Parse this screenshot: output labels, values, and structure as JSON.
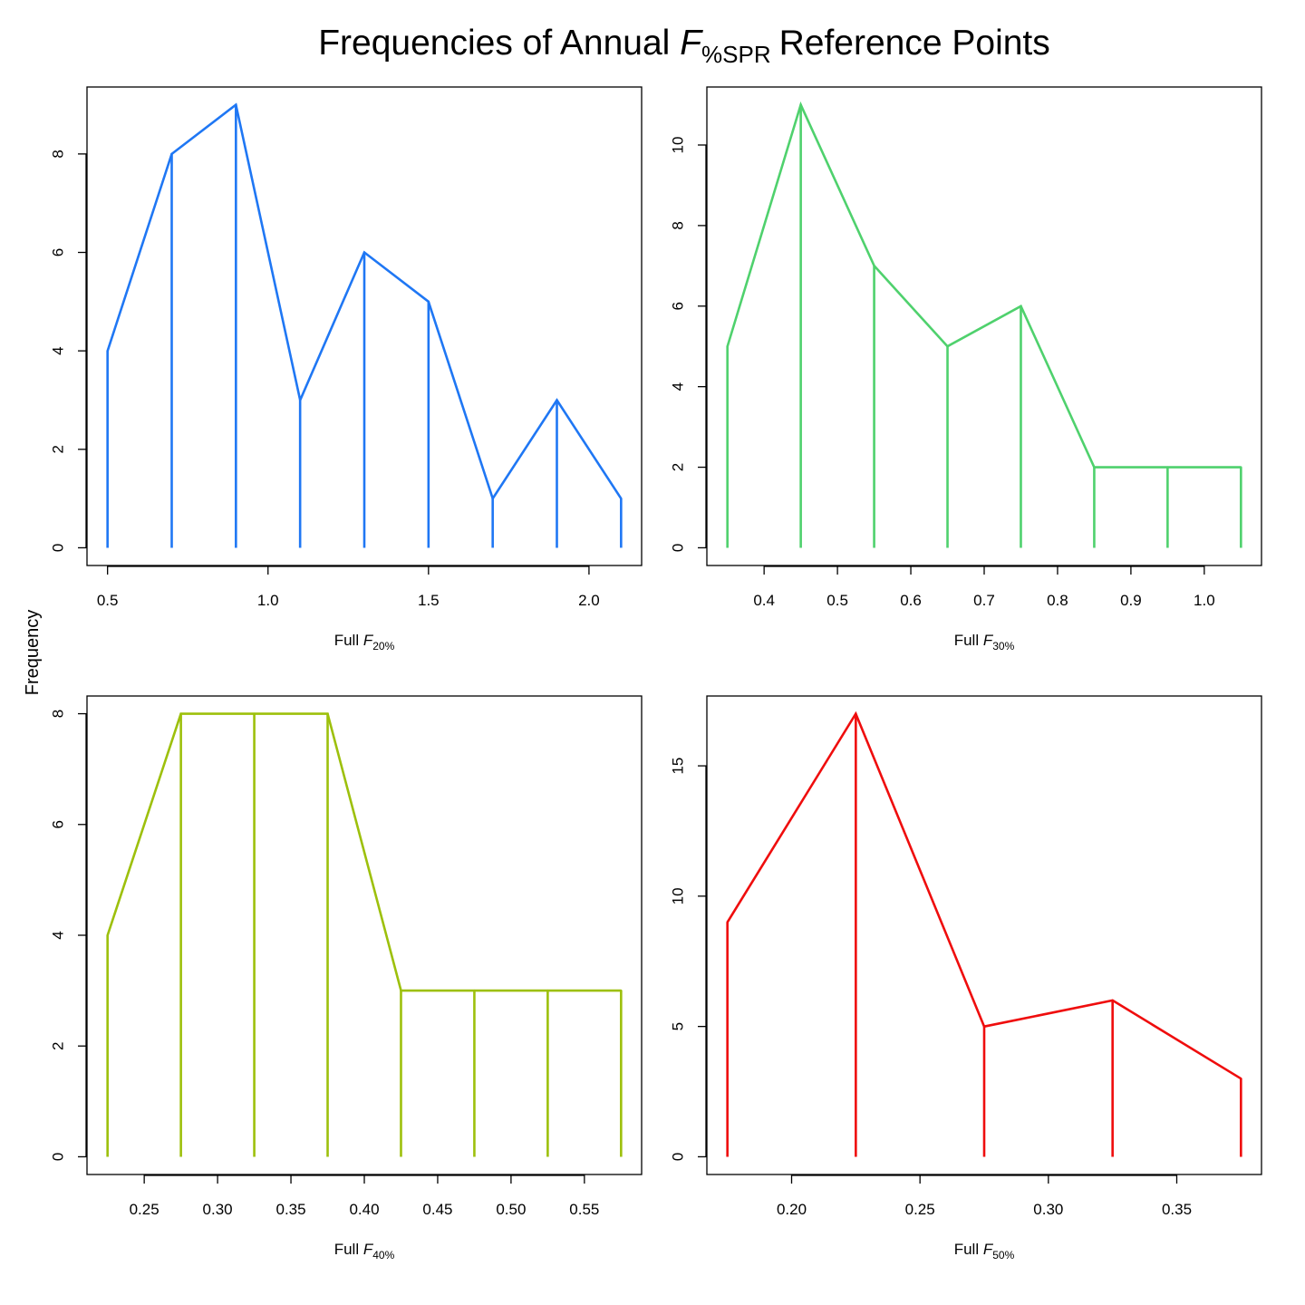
{
  "figure": {
    "title_main": "Frequencies of Annual",
    "title_var": "F",
    "title_sub": "%SPR",
    "title_end": "Reference Points",
    "ylabel": "Frequency"
  },
  "chart_data": [
    {
      "type": "line",
      "style": "frequency polygon with vertical drop lines",
      "color": "#1f77f4",
      "xlabel_prefix": "Full",
      "xlabel_var": "F",
      "xlabel_sub": "20%",
      "x": [
        0.5,
        0.7,
        0.9,
        1.1,
        1.3,
        1.5,
        1.7,
        1.9,
        2.1
      ],
      "y": [
        4,
        8,
        9,
        3,
        6,
        5,
        1,
        3,
        1
      ],
      "xticks": [
        0.5,
        1.0,
        1.5,
        2.0
      ],
      "xtick_labels": [
        "0.5",
        "1.0",
        "1.5",
        "2.0"
      ],
      "yticks": [
        0,
        2,
        4,
        6,
        8
      ],
      "ytick_labels": [
        "0",
        "2",
        "4",
        "6",
        "8"
      ],
      "xlim": [
        0.436,
        2.164
      ],
      "ylim": [
        -0.36,
        9.36
      ]
    },
    {
      "type": "line",
      "style": "frequency polygon with vertical drop lines",
      "color": "#4fd16d",
      "xlabel_prefix": "Full",
      "xlabel_var": "F",
      "xlabel_sub": "30%",
      "x": [
        0.35,
        0.45,
        0.55,
        0.65,
        0.75,
        0.85,
        0.95,
        1.05
      ],
      "y": [
        5,
        11,
        7,
        5,
        6,
        2,
        2,
        2
      ],
      "xticks": [
        0.4,
        0.5,
        0.6,
        0.7,
        0.8,
        0.9,
        1.0
      ],
      "xtick_labels": [
        "0.4",
        "0.5",
        "0.6",
        "0.7",
        "0.8",
        "0.9",
        "1.0"
      ],
      "yticks": [
        0,
        2,
        4,
        6,
        8,
        10
      ],
      "ytick_labels": [
        "0",
        "2",
        "4",
        "6",
        "8",
        "10"
      ],
      "xlim": [
        0.322,
        1.078
      ],
      "ylim": [
        -0.44,
        11.44
      ]
    },
    {
      "type": "line",
      "style": "frequency polygon with vertical drop lines",
      "color": "#9dc00c",
      "xlabel_prefix": "Full",
      "xlabel_var": "F",
      "xlabel_sub": "40%",
      "x": [
        0.225,
        0.275,
        0.325,
        0.375,
        0.425,
        0.475,
        0.525,
        0.575
      ],
      "y": [
        4,
        8,
        8,
        8,
        3,
        3,
        3,
        3
      ],
      "xticks": [
        0.25,
        0.3,
        0.35,
        0.4,
        0.45,
        0.5,
        0.55
      ],
      "xtick_labels": [
        "0.25",
        "0.30",
        "0.35",
        "0.40",
        "0.45",
        "0.50",
        "0.55"
      ],
      "yticks": [
        0,
        2,
        4,
        6,
        8
      ],
      "ytick_labels": [
        "0",
        "2",
        "4",
        "6",
        "8"
      ],
      "xlim": [
        0.211,
        0.589
      ],
      "ylim": [
        -0.32,
        8.32
      ]
    },
    {
      "type": "line",
      "style": "frequency polygon with vertical drop lines",
      "color": "#ef0d0d",
      "xlabel_prefix": "Full",
      "xlabel_var": "F",
      "xlabel_sub": "50%",
      "x": [
        0.175,
        0.225,
        0.275,
        0.325,
        0.375
      ],
      "y": [
        9,
        17,
        5,
        6,
        3
      ],
      "xticks": [
        0.2,
        0.25,
        0.3,
        0.35
      ],
      "xtick_labels": [
        "0.20",
        "0.25",
        "0.30",
        "0.35"
      ],
      "yticks": [
        0,
        5,
        10,
        15
      ],
      "ytick_labels": [
        "0",
        "5",
        "10",
        "15"
      ],
      "xlim": [
        0.167,
        0.383
      ],
      "ylim": [
        -0.68,
        17.68
      ]
    }
  ]
}
